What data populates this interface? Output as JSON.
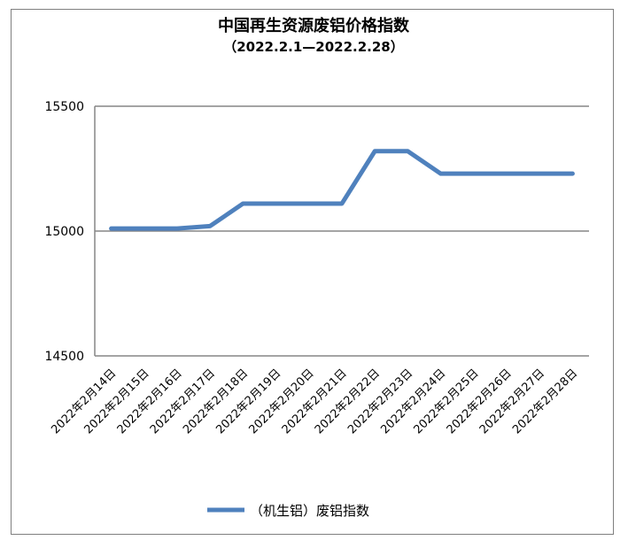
{
  "chart_data": {
    "type": "line",
    "title": "中国再生资源废铝价格指数",
    "subtitle": "（2022.2.1—2022.2.28）",
    "xlabel": "",
    "ylabel": "",
    "ylim": [
      14500,
      15500
    ],
    "yticks": [
      "14500",
      "15000",
      "15500"
    ],
    "grid": true,
    "legend_position": "bottom",
    "categories": [
      "2022年2月14日",
      "2022年2月15日",
      "2022年2月16日",
      "2022年2月17日",
      "2022年2月18日",
      "2022年2月19日",
      "2022年2月20日",
      "2022年2月21日",
      "2022年2月22日",
      "2022年2月23日",
      "2022年2月24日",
      "2022年2月25日",
      "2022年2月26日",
      "2022年2月27日",
      "2022年2月28日"
    ],
    "series": [
      {
        "name": "（机生铝）废铝指数",
        "color": "#4f81bd",
        "values": [
          15010,
          15010,
          15010,
          15020,
          15110,
          15110,
          15110,
          15110,
          15320,
          15320,
          15230,
          15230,
          15230,
          15230,
          15230
        ]
      }
    ]
  }
}
